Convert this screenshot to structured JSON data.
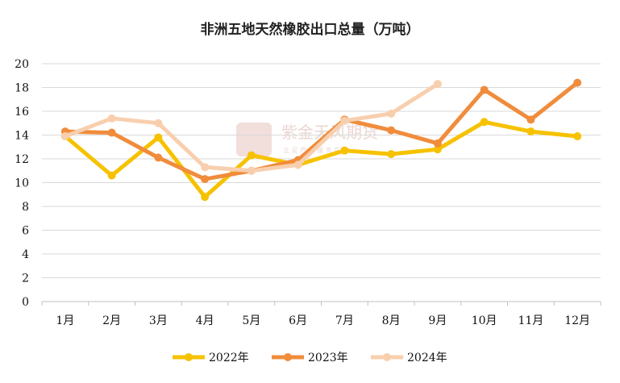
{
  "chart_data": {
    "type": "line",
    "title": "非洲五地天然橡胶出口总量（万吨）",
    "categories": [
      "1月",
      "2月",
      "3月",
      "4月",
      "5月",
      "6月",
      "7月",
      "8月",
      "9月",
      "10月",
      "11月",
      "12月"
    ],
    "ylim": [
      0,
      20
    ],
    "yticks": [
      0,
      2,
      4,
      6,
      8,
      10,
      12,
      14,
      16,
      18,
      20
    ],
    "grid": true,
    "legend_position": "bottom",
    "series": [
      {
        "name": "2022年",
        "color": "#f6c200",
        "values": [
          13.9,
          10.6,
          13.8,
          8.8,
          12.3,
          11.5,
          12.7,
          12.4,
          12.8,
          15.1,
          14.3,
          13.9
        ]
      },
      {
        "name": "2023年",
        "color": "#f08c3c",
        "values": [
          14.3,
          14.2,
          12.1,
          10.3,
          11.0,
          11.9,
          15.3,
          14.4,
          13.3,
          17.8,
          15.3,
          18.4
        ]
      },
      {
        "name": "2024年",
        "color": "#f8cfae",
        "values": [
          13.9,
          15.4,
          15.0,
          11.3,
          11.0,
          11.5,
          15.2,
          15.8,
          18.3,
          null,
          null,
          null
        ]
      }
    ]
  },
  "watermark": {
    "text": "紫金天风期货",
    "sub": "立 足 产 业   服 务 实 体",
    "color": "#ead6d2"
  }
}
